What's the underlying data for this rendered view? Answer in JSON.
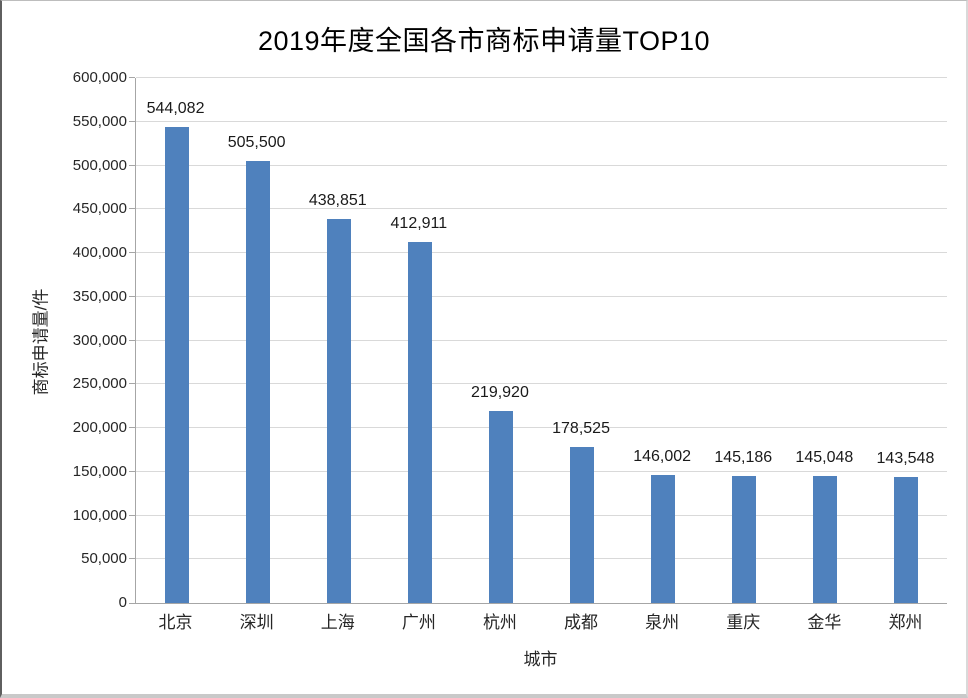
{
  "chart_data": {
    "type": "bar",
    "title": "2019年度全国各市商标申请量TOP10",
    "xlabel": "城市",
    "ylabel": "商标申请量/件",
    "categories": [
      "北京",
      "深圳",
      "上海",
      "广州",
      "杭州",
      "成都",
      "泉州",
      "重庆",
      "金华",
      "郑州"
    ],
    "values": [
      544082,
      505500,
      438851,
      412911,
      219920,
      178525,
      146002,
      145186,
      145048,
      143548
    ],
    "value_labels": [
      "544,082",
      "505,500",
      "438,851",
      "412,911",
      "219,920",
      "178,525",
      "146,002",
      "145,186",
      "145,048",
      "143,548"
    ],
    "ylim": [
      0,
      600000
    ],
    "ytick_step": 50000,
    "ytick_labels": [
      "0",
      "50,000",
      "100,000",
      "150,000",
      "200,000",
      "250,000",
      "300,000",
      "350,000",
      "400,000",
      "450,000",
      "500,000",
      "550,000",
      "600,000"
    ],
    "grid": "horizontal",
    "legend": "none",
    "colors": {
      "bar": "#4F81BD",
      "gridline": "#D9D9D9",
      "axis": "#A6A6A6",
      "text": "#262626",
      "title": "#000000",
      "background": "#FFFFFF"
    }
  }
}
